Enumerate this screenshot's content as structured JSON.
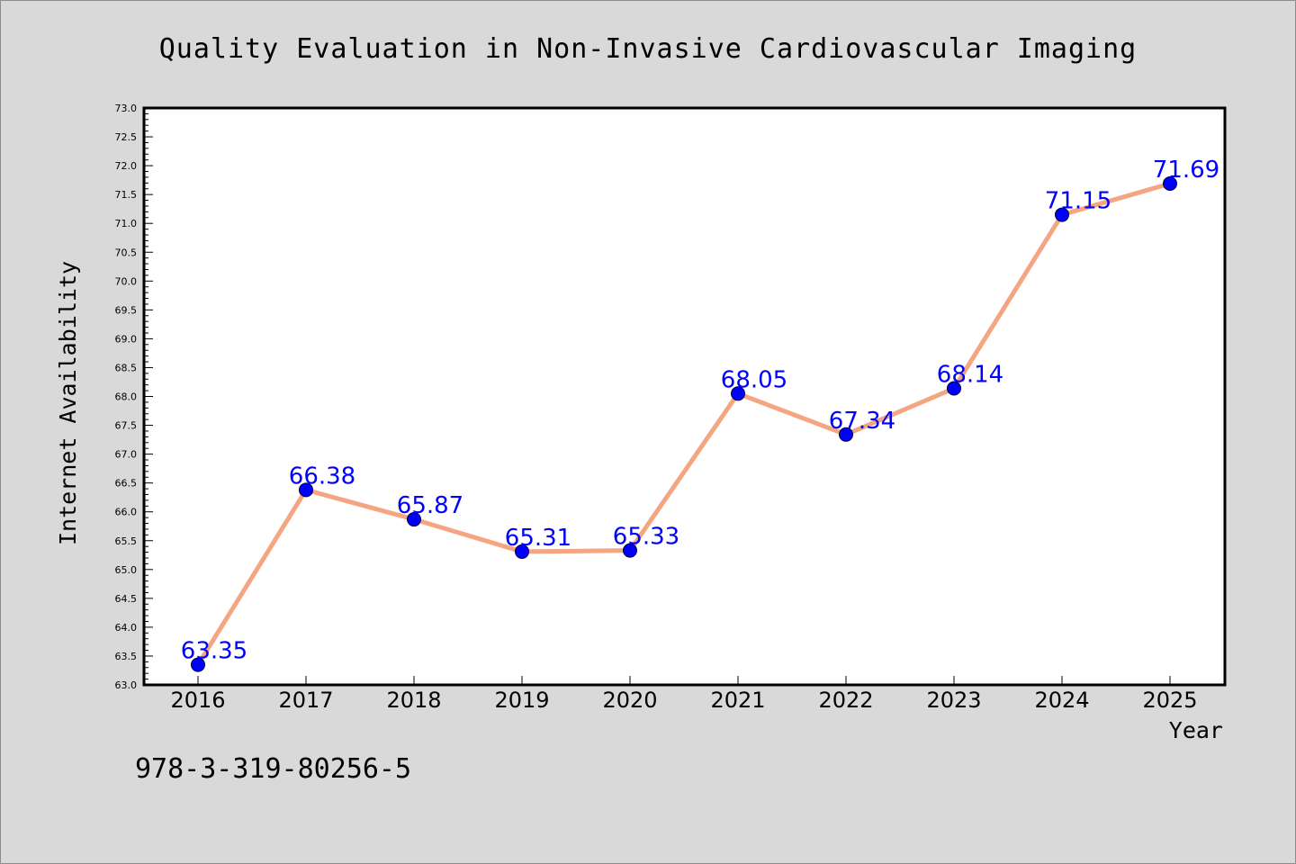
{
  "chart_data": {
    "type": "line",
    "title": "Quality Evaluation in Non-Invasive Cardiovascular Imaging",
    "xlabel": "Year",
    "ylabel": "Internet Availability",
    "categories": [
      "2016",
      "2017",
      "2018",
      "2019",
      "2020",
      "2021",
      "2022",
      "2023",
      "2024",
      "2025"
    ],
    "series": [
      {
        "values": [
          63.35,
          66.38,
          65.87,
          65.31,
          65.33,
          68.05,
          67.34,
          68.14,
          71.15,
          71.69
        ],
        "data_labels": [
          "63.35",
          "66.38",
          "65.87",
          "65.31",
          "65.33",
          "68.05",
          "67.34",
          "68.14",
          "71.15",
          "71.69"
        ],
        "line_color": "#f4a582",
        "marker_color": "#0000ff"
      }
    ],
    "ylim": [
      63.0,
      73.0
    ],
    "y_ticks": [
      "63.0",
      "63.5",
      "64.0",
      "64.5",
      "65.0",
      "65.5",
      "66.0",
      "66.5",
      "67.0",
      "67.5",
      "68.0",
      "68.5",
      "69.0",
      "69.5",
      "70.0",
      "70.5",
      "71.0",
      "71.5",
      "72.0",
      "72.5",
      "73.0"
    ],
    "grid": false,
    "legend": "none"
  },
  "footer": {
    "isbn": "978-3-319-80256-5"
  },
  "colors": {
    "background": "#d9d9d9",
    "plot_area": "#ffffff",
    "line": "#f4a582",
    "marker": "#0000ff",
    "data_label": "#0000ff"
  }
}
